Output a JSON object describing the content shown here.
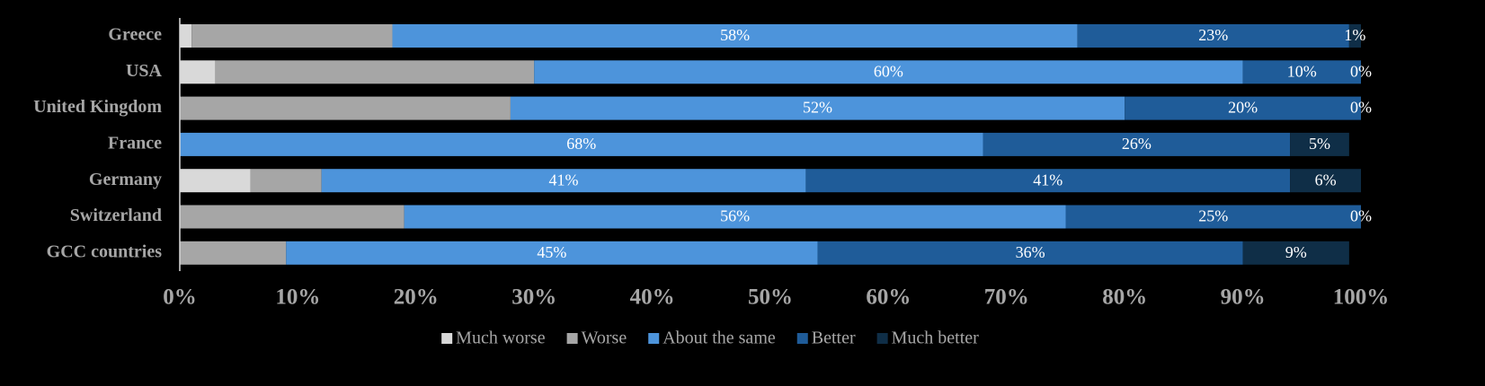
{
  "chart_data": {
    "type": "stacked-bar-horizontal",
    "categories": [
      "Greece",
      "USA",
      "United Kingdom",
      "France",
      "Germany",
      "Switzerland",
      "GCC countries"
    ],
    "series": [
      {
        "name": "Much worse",
        "color": "#d9d9d9",
        "values": [
          1,
          3,
          0,
          0,
          6,
          0,
          0
        ]
      },
      {
        "name": "Worse",
        "color": "#a6a6a6",
        "values": [
          17,
          27,
          28,
          0,
          6,
          19,
          9
        ]
      },
      {
        "name": "About the same",
        "color": "#4d94db",
        "values": [
          58,
          60,
          52,
          68,
          41,
          56,
          45
        ],
        "value_labels": [
          "58%",
          "60%",
          "52%",
          "68%",
          "41%",
          "56%",
          "45%"
        ]
      },
      {
        "name": "Better",
        "color": "#1f5c99",
        "values": [
          23,
          10,
          20,
          26,
          41,
          25,
          36
        ],
        "value_labels": [
          "23%",
          "10%",
          "20%",
          "26%",
          "41%",
          "25%",
          "36%"
        ]
      },
      {
        "name": "Much better",
        "color": "#0f2e47",
        "values": [
          1,
          0,
          0,
          5,
          6,
          0,
          9
        ],
        "value_labels": [
          "1%",
          "0%",
          "0%",
          "5%",
          "6%",
          "0%",
          "9%"
        ]
      }
    ],
    "xlim": [
      0,
      100
    ],
    "xticks": [
      {
        "value": 0,
        "label": "0%"
      },
      {
        "value": 10,
        "label": "10%"
      },
      {
        "value": 20,
        "label": "20%"
      },
      {
        "value": 30,
        "label": "30%"
      },
      {
        "value": 40,
        "label": "40%"
      },
      {
        "value": 50,
        "label": "50%"
      },
      {
        "value": 60,
        "label": "60%"
      },
      {
        "value": 70,
        "label": "70%"
      },
      {
        "value": 80,
        "label": "80%"
      },
      {
        "value": 90,
        "label": "90%"
      },
      {
        "value": 100,
        "label": "100%"
      }
    ],
    "legend": "bottom"
  }
}
